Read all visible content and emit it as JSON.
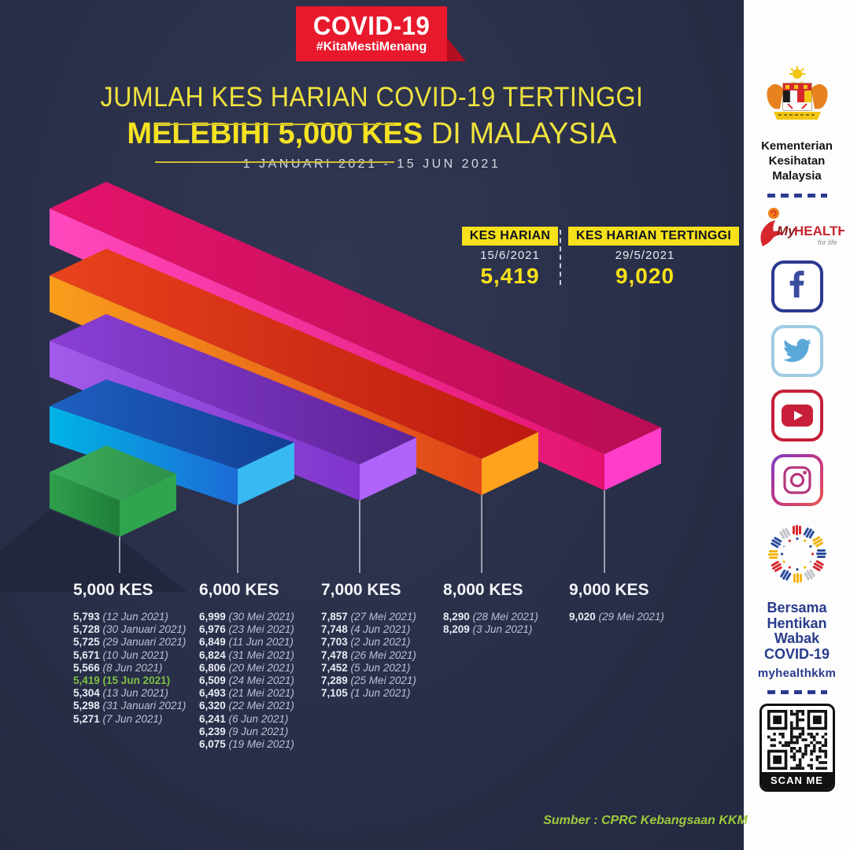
{
  "badge": {
    "title": "COVID-19",
    "hashtag": "#KitaMestiMenang"
  },
  "header": {
    "title_line1": "JUMLAH KES HARIAN COVID-19 TERTINGGI",
    "title_line2_bold": "MELEBIHI 5,000 KES",
    "title_line2_rest": " DI MALAYSIA",
    "subtitle": "1 JANUARI 2021 - 15 JUN 2021"
  },
  "stats": {
    "daily": {
      "label": "KES HARIAN",
      "date": "15/6/2021",
      "value": "5,419"
    },
    "highest": {
      "label": "KES HARIAN TERTINGGI",
      "date": "29/5/2021",
      "value": "9,020"
    }
  },
  "chart_data": {
    "type": "bar",
    "title": "JUMLAH KES HARIAN COVID-19 TERTINGGI MELEBIHI 5,000 KES DI MALAYSIA",
    "subtitle": "1 JANUARI 2021 - 15 JUN 2021",
    "orientation": "isometric-horizontal",
    "highlight_color": "#7cc142",
    "categories": [
      "5,000 KES",
      "6,000 KES",
      "7,000 KES",
      "8,000 KES",
      "9,000 KES"
    ],
    "bar_lengths_by_category": [
      1,
      2,
      3,
      4,
      5
    ],
    "columns": [
      {
        "label": "5,000 KES",
        "bar": {
          "top": [
            "#3bae5c",
            "#2e8f48"
          ],
          "front": [
            "#2fa04c",
            "#1e7d38"
          ],
          "end": "#2fa64e"
        },
        "entries": [
          {
            "value": "5,793",
            "date": "12 Jun 2021"
          },
          {
            "value": "5,728",
            "date": "30 Januari 2021"
          },
          {
            "value": "5,725",
            "date": "29 Januari 2021"
          },
          {
            "value": "5,671",
            "date": "10 Jun 2021"
          },
          {
            "value": "5,566",
            "date": "8 Jun 2021"
          },
          {
            "value": "5,419",
            "date": "15 Jun 2021",
            "highlight": true
          },
          {
            "value": "5,304",
            "date": "13 Jun 2021"
          },
          {
            "value": "5,298",
            "date": "31 Januari 2021"
          },
          {
            "value": "5,271",
            "date": "7 Jun 2021"
          }
        ]
      },
      {
        "label": "6,000 KES",
        "bar": {
          "top": [
            "#1e5fc2",
            "#123f93"
          ],
          "front": [
            "#00b4e6",
            "#1d6bd6"
          ],
          "end": "#38b9f2"
        },
        "entries": [
          {
            "value": "6,999",
            "date": "30 Mei 2021"
          },
          {
            "value": "6,976",
            "date": "23 Mei 2021"
          },
          {
            "value": "6,849",
            "date": "11 Jun 2021"
          },
          {
            "value": "6,824",
            "date": "31 Mei 2021"
          },
          {
            "value": "6,806",
            "date": "20 Mei 2021"
          },
          {
            "value": "6,509",
            "date": "24 Mei 2021"
          },
          {
            "value": "6,493",
            "date": "21 Mei 2021"
          },
          {
            "value": "6,320",
            "date": "22 Mei 2021"
          },
          {
            "value": "6,241",
            "date": "6 Jun 2021"
          },
          {
            "value": "6,239",
            "date": "9 Jun 2021"
          },
          {
            "value": "6,075",
            "date": "19 Mei 2021"
          }
        ]
      },
      {
        "label": "7,000 KES",
        "bar": {
          "top": [
            "#8a3fd6",
            "#5f2399"
          ],
          "front": [
            "#a35beb",
            "#7f35cc"
          ],
          "end": "#af63f9"
        },
        "entries": [
          {
            "value": "7,857",
            "date": "27 Mei 2021"
          },
          {
            "value": "7,748",
            "date": "4 Jun 2021"
          },
          {
            "value": "7,703",
            "date": "2 Jun 2021"
          },
          {
            "value": "7,478",
            "date": "26 Mei 2021"
          },
          {
            "value": "7,452",
            "date": "5 Jun 2021"
          },
          {
            "value": "7,289",
            "date": "25 Mei 2021"
          },
          {
            "value": "7,105",
            "date": "1 Jun 2021"
          }
        ]
      },
      {
        "label": "8,000 KES",
        "bar": {
          "top": [
            "#e8431c",
            "#bc1a10"
          ],
          "front": [
            "#f99e1b",
            "#e04319"
          ],
          "end": "#ffa21d"
        },
        "entries": [
          {
            "value": "8,290",
            "date": "28 Mei 2021"
          },
          {
            "value": "8,209",
            "date": "3 Jun 2021"
          }
        ]
      },
      {
        "label": "9,000 KES",
        "bar": {
          "top": [
            "#e4136b",
            "#b80d54"
          ],
          "front": [
            "#ff49be",
            "#e3136f"
          ],
          "end": "#ff3dc9"
        },
        "entries": [
          {
            "value": "9,020",
            "date": "29 Mei 2021"
          }
        ]
      }
    ]
  },
  "footer": {
    "source": "Sumber : CPRC Kebangsaan KKM"
  },
  "sidebar": {
    "ministry": {
      "line1": "Kementerian",
      "line2": "Kesihatan",
      "line3": "Malaysia"
    },
    "myhealth": {
      "brand_my": "My",
      "brand_health": "HEALTH",
      "tagline": "for life"
    },
    "social": [
      "facebook",
      "twitter",
      "youtube",
      "instagram"
    ],
    "campaign": {
      "line1": "Bersama",
      "line2": "Hentikan",
      "line3": "Wabak",
      "line4": "COVID-19",
      "handle": "myhealthkkm"
    },
    "qr_label": "SCAN ME",
    "colors": {
      "navy": "#283b8c",
      "facebook": "#3b4da0",
      "twitter": "#5aa8d8",
      "youtube": "#c8203b",
      "instagram": "#c13584"
    }
  }
}
